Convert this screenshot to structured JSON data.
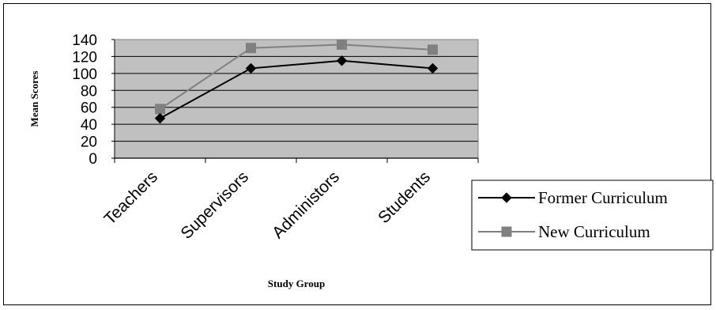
{
  "chart_data": {
    "type": "line",
    "categories": [
      "Teachers",
      "Supervisors",
      "Administors",
      "Students"
    ],
    "series": [
      {
        "name": "Former Curriculum",
        "values": [
          47,
          106,
          115,
          106
        ],
        "color": "#000000",
        "marker": "diamond"
      },
      {
        "name": "New Curriculum",
        "values": [
          58,
          130,
          134,
          128
        ],
        "color": "#808080",
        "marker": "square"
      }
    ],
    "xlabel": "Study Group",
    "ylabel": "Mean Scores",
    "ylim": [
      0,
      140
    ],
    "yticks": [
      0,
      20,
      40,
      60,
      80,
      100,
      120,
      140
    ],
    "plot_background": "#c0c0c0",
    "grid": true,
    "legend_position": "right"
  }
}
